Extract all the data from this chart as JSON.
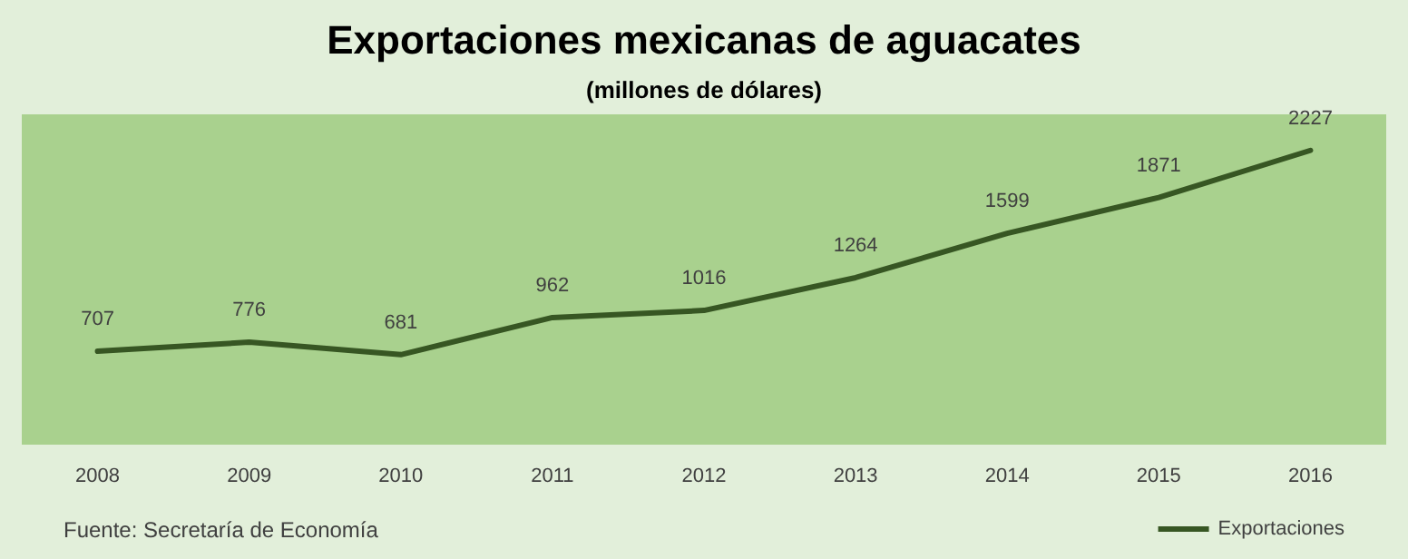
{
  "chart_data": {
    "type": "line",
    "title": "Exportaciones mexicanas de aguacates",
    "subtitle": "(millones de dólares)",
    "categories": [
      "2008",
      "2009",
      "2010",
      "2011",
      "2012",
      "2013",
      "2014",
      "2015",
      "2016"
    ],
    "series": [
      {
        "name": "Exportaciones",
        "color": "#375623",
        "values": [
          707,
          776,
          681,
          962,
          1016,
          1264,
          1599,
          1871,
          2227
        ]
      }
    ],
    "data_labels": true,
    "grid": false,
    "legend": "bottom right",
    "marker": "none",
    "line_style": "solid",
    "annotations": [
      "Fuente: Secretaría de Economía"
    ]
  }
}
